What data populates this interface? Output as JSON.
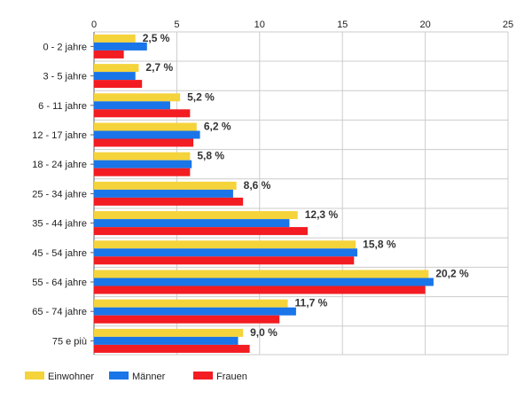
{
  "chart_data": {
    "type": "bar",
    "orientation": "horizontal",
    "title": "",
    "xlabel": "",
    "ylabel": "",
    "xlim": [
      0,
      25
    ],
    "x_ticks": [
      0,
      5,
      10,
      15,
      20,
      25
    ],
    "grid": true,
    "legend_position": "bottom-left",
    "categories": [
      "0 - 2 jahre",
      "3 - 5 jahre",
      "6 - 11 jahre",
      "12 - 17 jahre",
      "18 - 24 jahre",
      "25 - 34 jahre",
      "35 - 44 jahre",
      "45 - 54 jahre",
      "55 - 64 jahre",
      "65 - 74 jahre",
      "75 e più"
    ],
    "series": [
      {
        "name": "Einwohner",
        "color": "#f5d33b",
        "values": [
          2.5,
          2.7,
          5.2,
          6.2,
          5.8,
          8.6,
          12.3,
          15.8,
          20.2,
          11.7,
          9.0
        ]
      },
      {
        "name": "Männer",
        "color": "#1a75e8",
        "values": [
          3.2,
          2.5,
          4.6,
          6.4,
          5.9,
          8.4,
          11.8,
          15.9,
          20.5,
          12.2,
          8.7
        ]
      },
      {
        "name": "Frauen",
        "color": "#f21c22",
        "values": [
          1.8,
          2.9,
          5.8,
          6.0,
          5.8,
          9.0,
          12.9,
          15.7,
          20.0,
          11.2,
          9.4
        ]
      }
    ],
    "data_labels": [
      "2,5 %",
      "2,7 %",
      "5,2 %",
      "6,2 %",
      "5,8 %",
      "8,6 %",
      "12,3 %",
      "15,8 %",
      "20,2 %",
      "11,7 %",
      "9,0 %"
    ]
  }
}
